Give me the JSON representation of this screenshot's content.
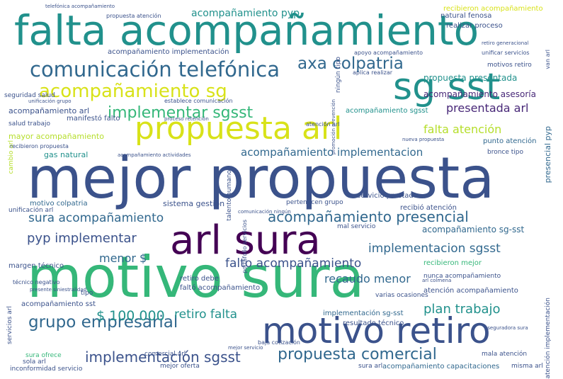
{
  "words": [
    {
      "text": "falta acompañamiento",
      "color": "#21918c"
    },
    {
      "text": "mejor propuesta",
      "color": "#3b528b"
    },
    {
      "text": "motivo sura",
      "color": "#35b779"
    },
    {
      "text": "arl sura",
      "color": "#440154"
    },
    {
      "text": "motivo retiro",
      "color": "#3b528b"
    },
    {
      "text": "sg sst",
      "color": "#21918c"
    },
    {
      "text": "propuesta arl",
      "color": "#d8e219"
    },
    {
      "text": "comunicación telefónica",
      "color": "#31688e"
    },
    {
      "text": "acompañamiento sg",
      "color": "#d8e219"
    },
    {
      "text": "axa colpatria",
      "color": "#31688e"
    },
    {
      "text": "implementar sgsst",
      "color": "#35b779"
    },
    {
      "text": "grupo empresarial",
      "color": "#31688e"
    },
    {
      "text": "implementación sgsst",
      "color": "#3b528b"
    },
    {
      "text": "propuesta comercial",
      "color": "#31688e"
    },
    {
      "text": "acompañamiento presencial",
      "color": "#31688e"
    },
    {
      "text": "sura acompañamiento",
      "color": "#31688e"
    },
    {
      "text": "acompañamiento implementacion",
      "color": "#31688e"
    },
    {
      "text": "pyp implementar",
      "color": "#3b528b"
    },
    {
      "text": "falto acompañamiento",
      "color": "#3b528b"
    },
    {
      "text": "implementacion sgsst",
      "color": "#31688e"
    },
    {
      "text": "plan trabajo",
      "color": "#21918c"
    },
    {
      "text": "retiro falta",
      "color": "#21918c"
    },
    {
      "text": "$ 100.000",
      "color": "#21918c"
    },
    {
      "text": "presentada arl",
      "color": "#482878"
    },
    {
      "text": "falta atención",
      "color": "#b5de2b"
    },
    {
      "text": "recaudo menor",
      "color": "#31688e"
    },
    {
      "text": "acompañamiento pyp",
      "color": "#21918c"
    },
    {
      "text": "menor $",
      "color": "#31688e"
    },
    {
      "text": "propuesta presentada",
      "color": "#21918c"
    },
    {
      "text": "acompañamiento asesoría",
      "color": "#482878"
    },
    {
      "text": "acompañamiento sg-sst",
      "color": "#31688e"
    },
    {
      "text": "acompañamiento arl",
      "color": "#3b528b"
    },
    {
      "text": "mayor acompañamiento",
      "color": "#b5de2b"
    },
    {
      "text": "gas natural",
      "color": "#21918c"
    },
    {
      "text": "sistema gestión",
      "color": "#3b528b"
    },
    {
      "text": "motivo colpatria",
      "color": "#31688e"
    },
    {
      "text": "manifestó falto",
      "color": "#3b528b"
    },
    {
      "text": "acompañamiento implementación",
      "color": "#3b528b"
    },
    {
      "text": "recibieron acompañamiento",
      "color": "#d8e219"
    },
    {
      "text": "acompañamiento sgsst",
      "color": "#21918c"
    },
    {
      "text": "implementación sg-sst",
      "color": "#31688e"
    },
    {
      "text": "acompañamiento sst",
      "color": "#3b528b"
    },
    {
      "text": "resultado técnico",
      "color": "#3b528b"
    },
    {
      "text": "acompañamiento capacitaciones",
      "color": "#31688e"
    },
    {
      "text": "margen técnico",
      "color": "#3b528b"
    },
    {
      "text": "retiro debe",
      "color": "#3b528b"
    },
    {
      "text": "faltó acompañamiento",
      "color": "#3b528b"
    },
    {
      "text": "recibieron mejor",
      "color": "#35b779"
    },
    {
      "text": "atención acompañamiento",
      "color": "#3b528b"
    },
    {
      "text": "servicio prestado",
      "color": "#3b528b"
    },
    {
      "text": "recibió atención",
      "color": "#3b528b"
    },
    {
      "text": "punto atención",
      "color": "#31688e"
    },
    {
      "text": "presencial pyp",
      "color": "#31688e"
    },
    {
      "text": "natural fenosa",
      "color": "#3b528b"
    },
    {
      "text": "realizar proceso",
      "color": "#3b528b"
    },
    {
      "text": "seguridad salud",
      "color": "#3b528b"
    },
    {
      "text": "salud trabajo",
      "color": "#3b528b"
    },
    {
      "text": "unificación arl",
      "color": "#3b528b"
    },
    {
      "text": "motivos retiro",
      "color": "#3b528b"
    },
    {
      "text": "varias ocasiones",
      "color": "#3b528b"
    },
    {
      "text": "mal servicio",
      "color": "#3b528b"
    },
    {
      "text": "nunca acompañamiento",
      "color": "#3b528b"
    },
    {
      "text": "sura ofrece",
      "color": "#35b779"
    },
    {
      "text": "sola arl",
      "color": "#3b528b"
    },
    {
      "text": "mejor oferta",
      "color": "#3b528b"
    },
    {
      "text": "inconformidad servicio",
      "color": "#3b528b"
    },
    {
      "text": "comercial arl",
      "color": "#3b528b"
    },
    {
      "text": "sura arl",
      "color": "#3b528b"
    },
    {
      "text": "misma arl",
      "color": "#3b528b"
    },
    {
      "text": "mala atención",
      "color": "#3b528b"
    },
    {
      "text": "tipo",
      "color": "#3b528b"
    },
    {
      "text": "bronce tipo",
      "color": "#3b528b"
    },
    {
      "text": "servicios arl",
      "color": "#3b528b"
    },
    {
      "text": "cambio arl",
      "color": "#b5de2b"
    },
    {
      "text": "talento humano",
      "color": "#3b528b"
    },
    {
      "text": "pertenecen grupo",
      "color": "#3b528b"
    },
    {
      "text": "ningún tipo",
      "color": "#3b528b"
    },
    {
      "text": "atención implementación",
      "color": "#3b528b"
    },
    {
      "text": "recibieron propuesta",
      "color": "#3b528b"
    },
    {
      "text": "atención arl",
      "color": "#3b528b"
    },
    {
      "text": "apoyo acompañamiento",
      "color": "#3b528b"
    },
    {
      "text": "unificar servicios",
      "color": "#3b528b"
    },
    {
      "text": "van arl",
      "color": "#3b528b"
    },
    {
      "text": "establece comunicación",
      "color": "#3b528b"
    },
    {
      "text": "propuesta atención",
      "color": "#3b528b"
    },
    {
      "text": "aplica realizar",
      "color": "#3b528b"
    },
    {
      "text": "portafolio servicios",
      "color": "#3b528b"
    },
    {
      "text": "baja cotización",
      "color": "#3b528b"
    },
    {
      "text": "técnico negativo",
      "color": "#3b528b"
    },
    {
      "text": "retiro generacional",
      "color": "#3b528b"
    },
    {
      "text": "promoción prevención",
      "color": "#3b528b"
    },
    {
      "text": "aseguradora sura",
      "color": "#3b528b"
    },
    {
      "text": "acompañamiento actividades",
      "color": "#3b528b"
    },
    {
      "text": "unificación grupo",
      "color": "#3b528b"
    },
    {
      "text": "comunicación ningún",
      "color": "#3b528b"
    },
    {
      "text": "telefónica acompañamiento",
      "color": "#3b528b"
    },
    {
      "text": "presente siniestralidad",
      "color": "#3b528b"
    },
    {
      "text": "proceso retención",
      "color": "#3b528b"
    },
    {
      "text": "nueva propuesta",
      "color": "#3b528b"
    },
    {
      "text": "mejor servicio",
      "color": "#3b528b"
    },
    {
      "text": "arl colmena",
      "color": "#3b528b"
    }
  ]
}
